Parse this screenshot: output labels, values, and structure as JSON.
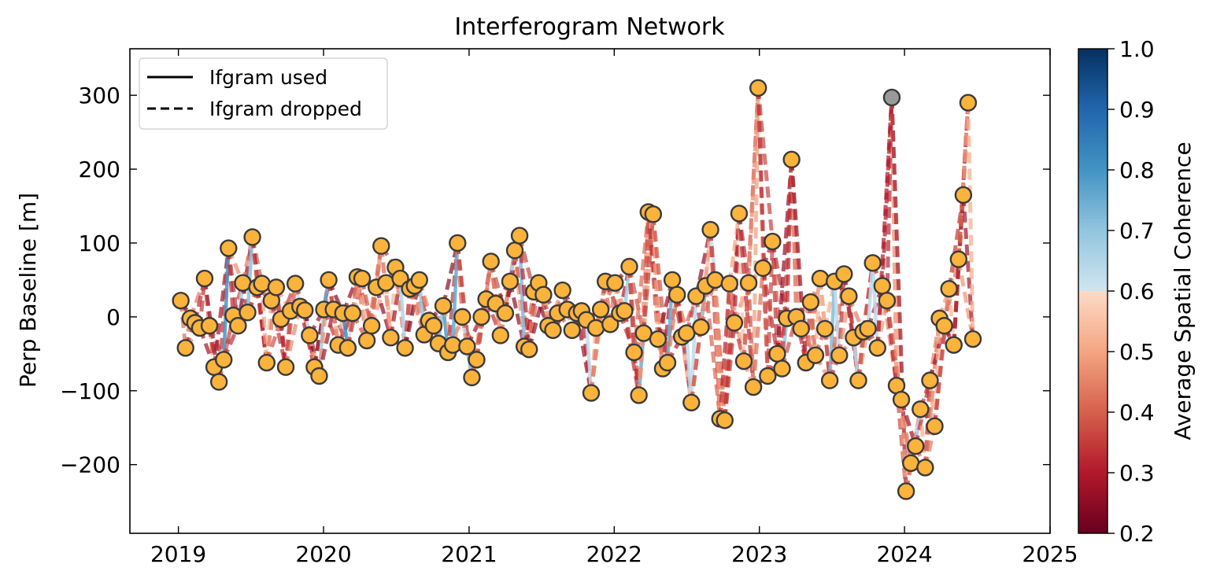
{
  "chart_data": {
    "type": "scatter",
    "title": "Interferogram Network",
    "xlabel": "",
    "ylabel": "Perp Baseline [m]",
    "xlim": [
      "2018-09-01",
      "2025-01-01"
    ],
    "ylim": [
      -293,
      363
    ],
    "xticks": [
      "2019",
      "2020",
      "2021",
      "2022",
      "2023",
      "2024",
      "2025"
    ],
    "yticks": [
      -200,
      -100,
      0,
      100,
      200,
      300
    ],
    "ytick_labels": [
      "−200",
      "−100",
      "0",
      "100",
      "200",
      "300"
    ],
    "legend": {
      "placement": "top-left",
      "entries": [
        {
          "label": "Ifgram used",
          "style": "solid"
        },
        {
          "label": "Ifgram dropped",
          "style": "dashed"
        }
      ]
    },
    "colorbar": {
      "label": "Average Spatial Coherence",
      "range": [
        0.2,
        1.0
      ],
      "ticks": [
        "0.2",
        "0.3",
        "0.4",
        "0.5",
        "0.6",
        "0.7",
        "0.8",
        "0.9",
        "1.0"
      ],
      "colormap": "RdBu",
      "split_value": 0.6
    },
    "acquisitions": [
      [
        "2019-01-07",
        22
      ],
      [
        "2019-01-19",
        -42
      ],
      [
        "2019-01-31",
        -2
      ],
      [
        "2019-02-12",
        -8
      ],
      [
        "2019-02-24",
        -15
      ],
      [
        "2019-03-08",
        52
      ],
      [
        "2019-03-20",
        -12
      ],
      [
        "2019-04-01",
        -68
      ],
      [
        "2019-04-13",
        -88
      ],
      [
        "2019-04-25",
        -58
      ],
      [
        "2019-05-07",
        93
      ],
      [
        "2019-05-19",
        2
      ],
      [
        "2019-05-31",
        -12
      ],
      [
        "2019-06-12",
        46
      ],
      [
        "2019-06-24",
        6
      ],
      [
        "2019-07-06",
        108
      ],
      [
        "2019-07-18",
        40
      ],
      [
        "2019-07-30",
        45
      ],
      [
        "2019-08-11",
        -62
      ],
      [
        "2019-08-23",
        22
      ],
      [
        "2019-09-04",
        40
      ],
      [
        "2019-09-16",
        -3
      ],
      [
        "2019-09-28",
        -68
      ],
      [
        "2019-10-10",
        8
      ],
      [
        "2019-10-22",
        45
      ],
      [
        "2019-11-03",
        14
      ],
      [
        "2019-11-15",
        9
      ],
      [
        "2019-11-27",
        -25
      ],
      [
        "2019-12-09",
        -68
      ],
      [
        "2019-12-21",
        -80
      ],
      [
        "2020-01-02",
        10
      ],
      [
        "2020-01-14",
        50
      ],
      [
        "2020-01-26",
        10
      ],
      [
        "2020-02-07",
        -38
      ],
      [
        "2020-02-19",
        5
      ],
      [
        "2020-03-02",
        -42
      ],
      [
        "2020-03-14",
        5
      ],
      [
        "2020-03-26",
        54
      ],
      [
        "2020-04-07",
        52
      ],
      [
        "2020-04-19",
        -32
      ],
      [
        "2020-05-01",
        -12
      ],
      [
        "2020-05-13",
        40
      ],
      [
        "2020-05-25",
        96
      ],
      [
        "2020-06-06",
        46
      ],
      [
        "2020-06-18",
        -28
      ],
      [
        "2020-06-30",
        67
      ],
      [
        "2020-07-12",
        52
      ],
      [
        "2020-07-24",
        -42
      ],
      [
        "2020-08-05",
        38
      ],
      [
        "2020-08-17",
        42
      ],
      [
        "2020-08-29",
        50
      ],
      [
        "2020-09-10",
        -24
      ],
      [
        "2020-09-22",
        -5
      ],
      [
        "2020-10-04",
        -12
      ],
      [
        "2020-10-16",
        -36
      ],
      [
        "2020-10-28",
        15
      ],
      [
        "2020-11-09",
        -48
      ],
      [
        "2020-11-21",
        -38
      ],
      [
        "2020-12-03",
        100
      ],
      [
        "2020-12-15",
        0
      ],
      [
        "2020-12-27",
        -40
      ],
      [
        "2021-01-08",
        -82
      ],
      [
        "2021-01-20",
        -58
      ],
      [
        "2021-02-01",
        0
      ],
      [
        "2021-02-13",
        24
      ],
      [
        "2021-02-25",
        75
      ],
      [
        "2021-03-09",
        18
      ],
      [
        "2021-03-21",
        -25
      ],
      [
        "2021-04-02",
        5
      ],
      [
        "2021-04-14",
        48
      ],
      [
        "2021-04-26",
        90
      ],
      [
        "2021-05-08",
        110
      ],
      [
        "2021-05-20",
        -40
      ],
      [
        "2021-06-01",
        -44
      ],
      [
        "2021-06-13",
        34
      ],
      [
        "2021-06-25",
        46
      ],
      [
        "2021-07-07",
        30
      ],
      [
        "2021-07-19",
        -12
      ],
      [
        "2021-07-31",
        -18
      ],
      [
        "2021-08-12",
        5
      ],
      [
        "2021-08-24",
        36
      ],
      [
        "2021-09-05",
        10
      ],
      [
        "2021-09-17",
        -18
      ],
      [
        "2021-09-29",
        5
      ],
      [
        "2021-10-11",
        8
      ],
      [
        "2021-10-23",
        -4
      ],
      [
        "2021-11-04",
        -103
      ],
      [
        "2021-11-16",
        -15
      ],
      [
        "2021-11-28",
        10
      ],
      [
        "2021-12-10",
        48
      ],
      [
        "2021-12-22",
        -10
      ],
      [
        "2022-01-03",
        46
      ],
      [
        "2022-01-15",
        5
      ],
      [
        "2022-01-27",
        8
      ],
      [
        "2022-02-08",
        68
      ],
      [
        "2022-02-20",
        -48
      ],
      [
        "2022-03-04",
        -106
      ],
      [
        "2022-03-16",
        -22
      ],
      [
        "2022-03-28",
        142
      ],
      [
        "2022-04-09",
        139
      ],
      [
        "2022-04-21",
        -30
      ],
      [
        "2022-05-03",
        -70
      ],
      [
        "2022-05-15",
        -62
      ],
      [
        "2022-05-27",
        50
      ],
      [
        "2022-06-08",
        30
      ],
      [
        "2022-06-20",
        -27
      ],
      [
        "2022-07-02",
        -22
      ],
      [
        "2022-07-14",
        -116
      ],
      [
        "2022-07-26",
        28
      ],
      [
        "2022-08-07",
        -14
      ],
      [
        "2022-08-19",
        42
      ],
      [
        "2022-08-31",
        118
      ],
      [
        "2022-09-12",
        50
      ],
      [
        "2022-09-24",
        -138
      ],
      [
        "2022-10-06",
        -140
      ],
      [
        "2022-10-18",
        45
      ],
      [
        "2022-10-30",
        -8
      ],
      [
        "2022-11-11",
        140
      ],
      [
        "2022-11-23",
        -60
      ],
      [
        "2022-12-05",
        46
      ],
      [
        "2022-12-17",
        -95
      ],
      [
        "2022-12-29",
        310
      ],
      [
        "2023-01-10",
        66
      ],
      [
        "2023-01-22",
        -80
      ],
      [
        "2023-02-03",
        102
      ],
      [
        "2023-02-15",
        -50
      ],
      [
        "2023-02-27",
        -70
      ],
      [
        "2023-03-11",
        -2
      ],
      [
        "2023-03-23",
        213
      ],
      [
        "2023-04-04",
        0
      ],
      [
        "2023-04-16",
        -16
      ],
      [
        "2023-04-28",
        -62
      ],
      [
        "2023-05-10",
        20
      ],
      [
        "2023-05-22",
        -52
      ],
      [
        "2023-06-03",
        52
      ],
      [
        "2023-06-15",
        -16
      ],
      [
        "2023-06-27",
        -86
      ],
      [
        "2023-07-09",
        48
      ],
      [
        "2023-07-21",
        -52
      ],
      [
        "2023-08-02",
        58
      ],
      [
        "2023-08-14",
        28
      ],
      [
        "2023-08-26",
        -28
      ],
      [
        "2023-09-07",
        -86
      ],
      [
        "2023-09-19",
        -20
      ],
      [
        "2023-10-01",
        -16
      ],
      [
        "2023-10-13",
        73
      ],
      [
        "2023-10-25",
        -42
      ],
      [
        "2023-11-06",
        42
      ],
      [
        "2023-11-18",
        22
      ],
      [
        "2023-11-30",
        297
      ],
      [
        "2023-12-12",
        -93
      ],
      [
        "2023-12-24",
        -112
      ],
      [
        "2024-01-05",
        -236
      ],
      [
        "2024-01-17",
        -198
      ],
      [
        "2024-01-29",
        -175
      ],
      [
        "2024-02-10",
        -125
      ],
      [
        "2024-02-22",
        -204
      ],
      [
        "2024-03-05",
        -86
      ],
      [
        "2024-03-17",
        -148
      ],
      [
        "2024-03-29",
        -2
      ],
      [
        "2024-04-10",
        -12
      ],
      [
        "2024-04-22",
        38
      ],
      [
        "2024-05-04",
        -38
      ],
      [
        "2024-05-16",
        78
      ],
      [
        "2024-05-28",
        165
      ],
      [
        "2024-06-09",
        290
      ],
      [
        "2024-06-21",
        -30
      ]
    ],
    "excluded_acquisitions": [
      "2023-11-30"
    ]
  }
}
